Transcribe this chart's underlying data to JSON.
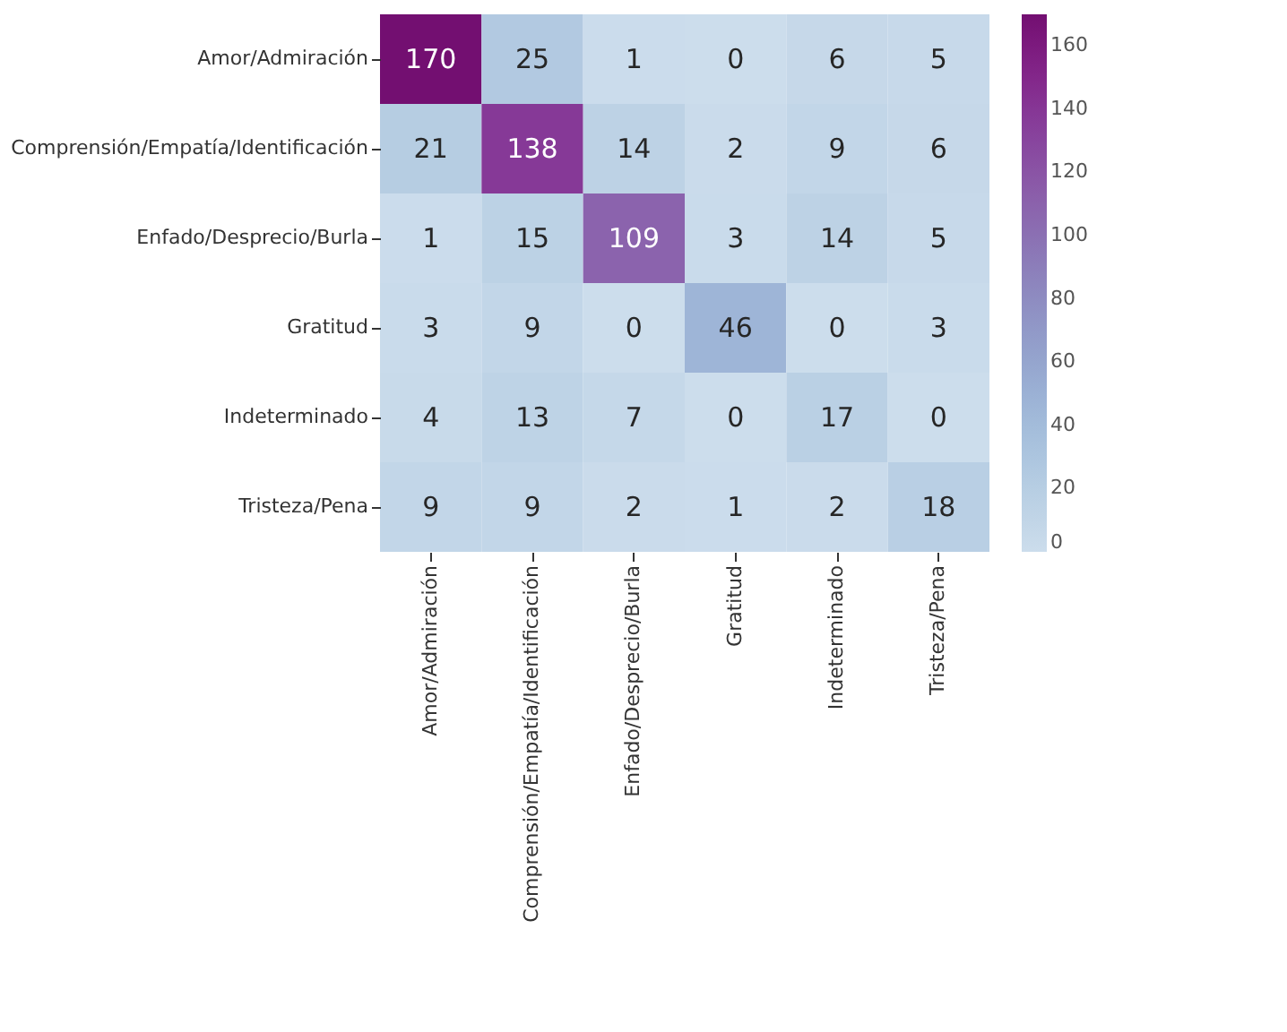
{
  "chart_data": {
    "type": "heatmap",
    "categories": [
      "Amor/Admiración",
      "Comprensión/Empatía/Identificación",
      "Enfado/Desprecio/Burla",
      "Gratitud",
      "Indeterminado",
      "Tristeza/Pena"
    ],
    "y_categories": [
      "Amor/Admiración",
      "Comprensión/Empatía/Identificación",
      "Enfado/Desprecio/Burla",
      "Gratitud",
      "Indeterminado",
      "Tristeza/Pena"
    ],
    "cells": [
      [
        170,
        25,
        1,
        0,
        6,
        5
      ],
      [
        21,
        138,
        14,
        2,
        9,
        6
      ],
      [
        1,
        15,
        109,
        3,
        14,
        5
      ],
      [
        3,
        9,
        0,
        46,
        0,
        3
      ],
      [
        4,
        13,
        7,
        0,
        17,
        0
      ],
      [
        9,
        9,
        2,
        1,
        2,
        18
      ]
    ],
    "data_labels": true,
    "clim": [
      0,
      170
    ],
    "cticks": [
      0,
      20,
      40,
      60,
      80,
      100,
      120,
      140,
      160
    ]
  }
}
